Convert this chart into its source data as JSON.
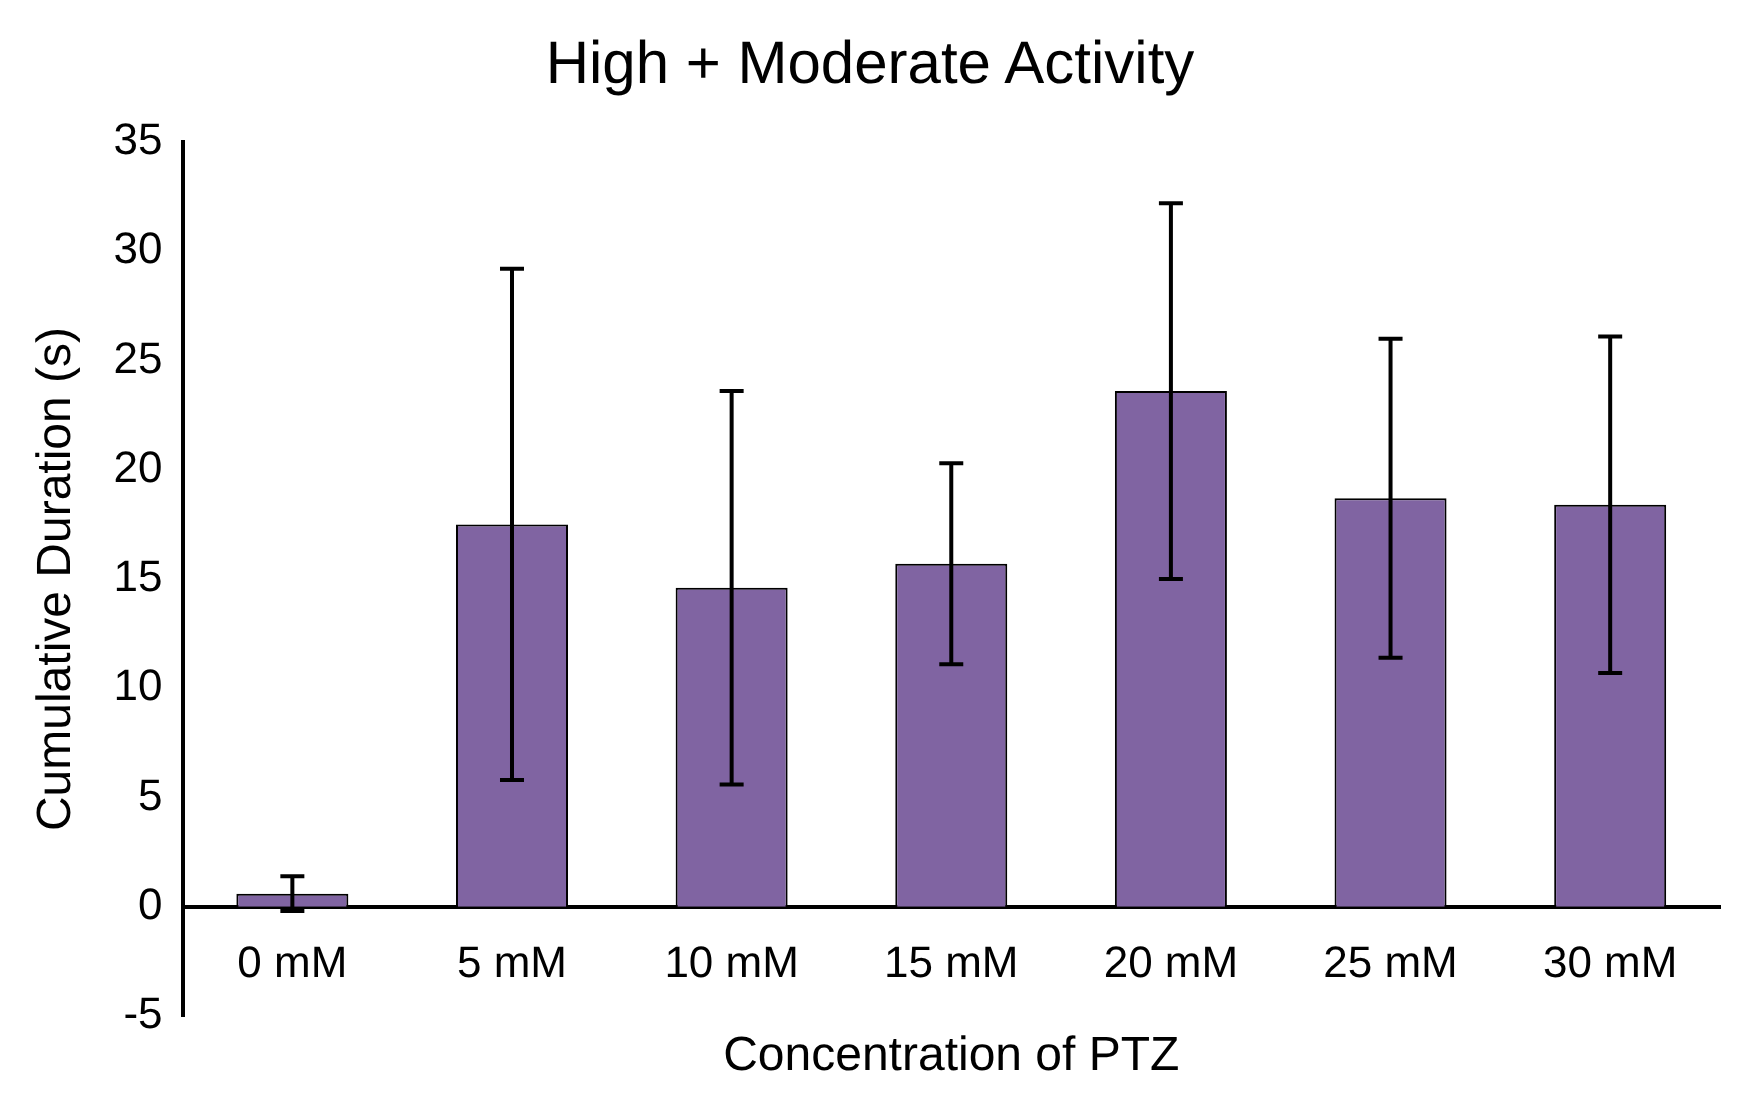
{
  "chart_data": {
    "type": "bar",
    "title": "High + Moderate Activity",
    "xlabel": "Concentration of PTZ",
    "ylabel": "Cumulative Duration (s)",
    "categories": [
      "0 mM",
      "5 mM",
      "10 mM",
      "15 mM",
      "20 mM",
      "25 mM",
      "30 mM"
    ],
    "values": [
      0.6,
      17.5,
      14.6,
      15.7,
      23.6,
      18.7,
      18.4
    ],
    "errors": [
      0.8,
      11.7,
      9.0,
      4.6,
      8.6,
      7.3,
      7.7
    ],
    "color": "#8064a2",
    "ylim": [
      -5,
      35
    ],
    "yticks": [
      -5,
      0,
      5,
      10,
      15,
      20,
      25,
      30,
      35
    ],
    "grid": false,
    "legend": false
  }
}
